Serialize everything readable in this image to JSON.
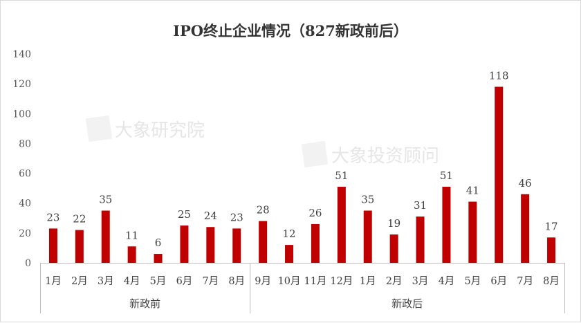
{
  "chart_data": {
    "type": "bar",
    "title": "IPO终止企业情况（827新政前后）",
    "xlabel": "",
    "ylabel": "",
    "ylim": [
      0,
      140
    ],
    "yticks": [
      0,
      20,
      40,
      60,
      80,
      100,
      120,
      140
    ],
    "grid": false,
    "legend": "none",
    "bar_color": "#c00000",
    "categories": [
      "1月",
      "2月",
      "3月",
      "4月",
      "5月",
      "6月",
      "7月",
      "8月",
      "9月",
      "10月",
      "11月",
      "12月",
      "1月",
      "2月",
      "3月",
      "4月",
      "5月",
      "6月",
      "7月",
      "8月"
    ],
    "values": [
      23,
      22,
      35,
      11,
      6,
      25,
      24,
      23,
      28,
      12,
      26,
      51,
      35,
      19,
      31,
      51,
      41,
      118,
      46,
      17
    ],
    "groups": [
      {
        "label": "新政前",
        "start": 0,
        "count": 8
      },
      {
        "label": "新政后",
        "start": 8,
        "count": 12
      }
    ]
  },
  "watermarks": [
    "大象研究院",
    "大象投资顾问"
  ]
}
